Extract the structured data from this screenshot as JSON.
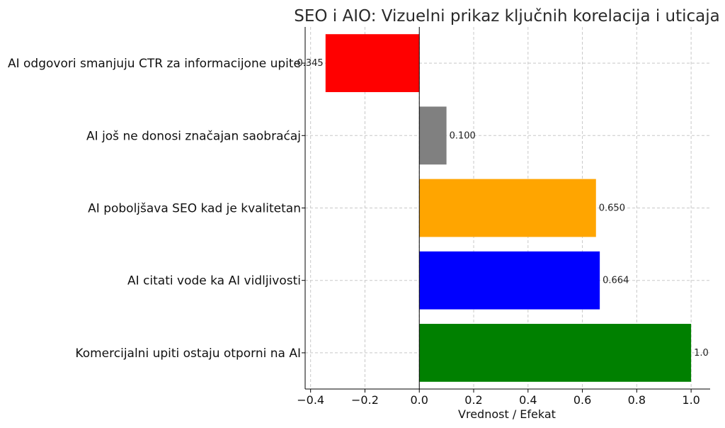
{
  "chart_data": {
    "type": "bar",
    "orientation": "horizontal",
    "title": "SEO i AIO: Vizuelni prikaz ključnih korelacija i uticaja",
    "xlabel": "Vrednost / Efekat",
    "ylabel": "",
    "xlim": [
      -0.42,
      1.07
    ],
    "x_ticks": [
      -0.4,
      -0.2,
      0.0,
      0.2,
      0.4,
      0.6,
      0.8,
      1.0
    ],
    "x_tick_labels": [
      "−0.4",
      "−0.2",
      "0.0",
      "0.2",
      "0.4",
      "0.6",
      "0.8",
      "1.0"
    ],
    "grid": true,
    "categories": [
      "AI odgovori smanjuju CTR za informacijone upite",
      "AI još ne donosi značajan saobraćaj",
      "AI poboljšava SEO kad je kvalitetan",
      "AI citati vode ka AI vidljivosti",
      "Komercijalni upiti ostaju otporni na AI"
    ],
    "values": [
      -0.345,
      0.1,
      0.65,
      0.664,
      1.0
    ],
    "value_labels": [
      "-0.345",
      "0.100",
      "0.650",
      "0.664",
      "1.0"
    ],
    "colors": [
      "#ff0000",
      "#808080",
      "#ffa500",
      "#0000ff",
      "#008000"
    ]
  }
}
